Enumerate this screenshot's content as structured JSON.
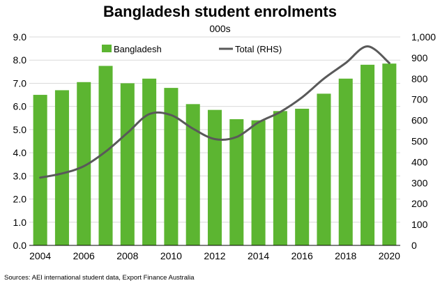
{
  "chart_data": {
    "type": "bar+line",
    "title": "Bangladesh student enrolments",
    "subtitle": "000s",
    "x": [
      2004,
      2005,
      2006,
      2007,
      2008,
      2009,
      2010,
      2011,
      2012,
      2013,
      2014,
      2015,
      2016,
      2017,
      2018,
      2019,
      2020
    ],
    "x_tick_labels": [
      "2004",
      "2006",
      "2008",
      "2010",
      "2012",
      "2014",
      "2016",
      "2018",
      "2020"
    ],
    "series": [
      {
        "name": "Bangladesh",
        "type": "bar",
        "axis": "left",
        "color": "#5cb531",
        "values": [
          6.5,
          6.7,
          7.05,
          7.75,
          7.0,
          7.2,
          6.8,
          6.1,
          5.85,
          5.45,
          5.4,
          5.8,
          5.9,
          6.55,
          7.2,
          7.8,
          7.85
        ]
      },
      {
        "name": "Total (RHS)",
        "type": "line",
        "axis": "right",
        "color": "#595959",
        "values": [
          325,
          345,
          380,
          450,
          540,
          630,
          625,
          560,
          510,
          520,
          590,
          640,
          710,
          800,
          875,
          955,
          875
        ]
      }
    ],
    "y_left": {
      "lim": [
        0,
        9
      ],
      "ticks": [
        "0.0",
        "1.0",
        "2.0",
        "3.0",
        "4.0",
        "5.0",
        "6.0",
        "7.0",
        "8.0",
        "9.0"
      ]
    },
    "y_right": {
      "lim": [
        0,
        1000
      ],
      "ticks": [
        "0",
        "100",
        "200",
        "300",
        "400",
        "500",
        "600",
        "700",
        "800",
        "900",
        "1,000"
      ]
    },
    "grid": true,
    "legend": "top-center"
  },
  "source": "Sources: AEI international student data, Export Finance Australia"
}
